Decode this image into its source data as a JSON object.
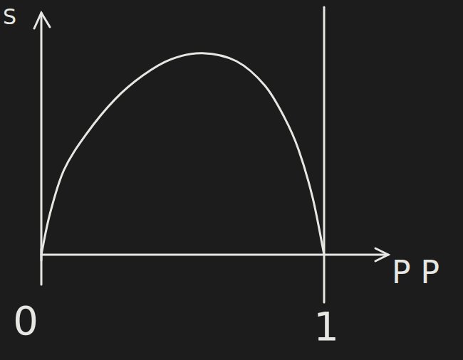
{
  "chart_data": {
    "type": "line",
    "ylabel": "S",
    "xlabel": "P P",
    "x": [
      0,
      0.03,
      0.08,
      0.16,
      0.26,
      0.36,
      0.46,
      0.57,
      0.69,
      0.79,
      0.86,
      0.91,
      0.96,
      1
    ],
    "values": [
      0,
      0.2,
      0.42,
      0.6,
      0.77,
      0.89,
      0.97,
      1.0,
      0.96,
      0.84,
      0.68,
      0.52,
      0.28,
      0
    ],
    "color": "#e6e6e3",
    "xlim": [
      0,
      1
    ],
    "ylim": [
      0,
      1.2
    ],
    "xticks": [
      0,
      1
    ],
    "tick_labels": "x",
    "grid": false
  }
}
